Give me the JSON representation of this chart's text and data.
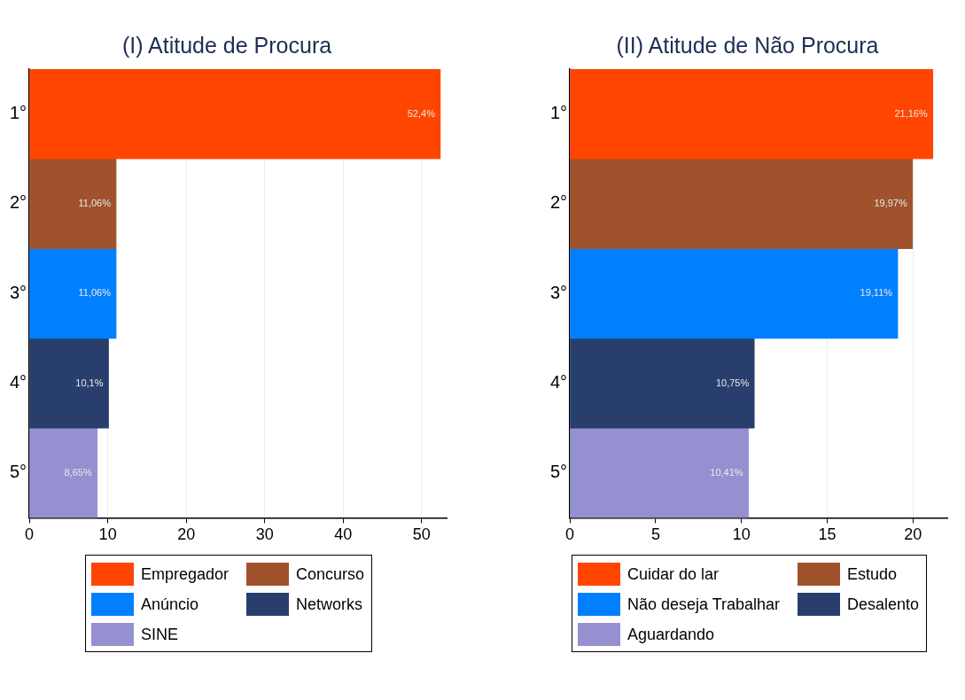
{
  "chart_data": [
    {
      "type": "bar",
      "orientation": "horizontal",
      "title": "(I) Atitude de Procura",
      "categories": [
        "1°",
        "2°",
        "3°",
        "4°",
        "5°"
      ],
      "xlim": [
        0,
        53.2
      ],
      "xticks": [
        0,
        10,
        20,
        30,
        40,
        50
      ],
      "grid": "x",
      "legend": "bottom",
      "series": [
        {
          "name": "Empregador",
          "color": "#ff4500",
          "values": [
            52.4,
            null,
            null,
            null,
            null
          ],
          "value_labels": [
            "52,4%",
            null,
            null,
            null,
            null
          ]
        },
        {
          "name": "Concurso",
          "color": "#a0522d",
          "values": [
            null,
            11.06,
            null,
            null,
            null
          ],
          "value_labels": [
            null,
            "11,06%",
            null,
            null,
            null
          ]
        },
        {
          "name": "Anúncio",
          "color": "#0080ff",
          "values": [
            null,
            null,
            11.06,
            null,
            null
          ],
          "value_labels": [
            null,
            null,
            "11,06%",
            null,
            null
          ]
        },
        {
          "name": "Networks",
          "color": "#283f6e",
          "values": [
            null,
            null,
            null,
            10.1,
            null
          ],
          "value_labels": [
            null,
            null,
            null,
            "10,1%",
            null
          ]
        },
        {
          "name": "SINE",
          "color": "#9590d0",
          "values": [
            null,
            null,
            null,
            null,
            8.65
          ],
          "value_labels": [
            null,
            null,
            null,
            null,
            "8,65%"
          ]
        }
      ]
    },
    {
      "type": "bar",
      "orientation": "horizontal",
      "title": "(II) Atitude de Não Procura",
      "categories": [
        "1°",
        "2°",
        "3°",
        "4°",
        "5°"
      ],
      "xlim": [
        0,
        22
      ],
      "xticks": [
        0,
        5,
        10,
        15,
        20
      ],
      "grid": "x",
      "legend": "bottom",
      "series": [
        {
          "name": "Cuidar do lar",
          "color": "#ff4500",
          "values": [
            21.16,
            null,
            null,
            null,
            null
          ],
          "value_labels": [
            "21,16%",
            null,
            null,
            null,
            null
          ]
        },
        {
          "name": "Estudo",
          "color": "#a0522d",
          "values": [
            null,
            19.97,
            null,
            null,
            null
          ],
          "value_labels": [
            null,
            "19,97%",
            null,
            null,
            null
          ]
        },
        {
          "name": "Não deseja Trabalhar",
          "color": "#0080ff",
          "values": [
            null,
            null,
            19.11,
            null,
            null
          ],
          "value_labels": [
            null,
            null,
            "19,11%",
            null,
            null
          ]
        },
        {
          "name": "Desalento",
          "color": "#283f6e",
          "values": [
            null,
            null,
            null,
            10.75,
            null
          ],
          "value_labels": [
            null,
            null,
            null,
            "10,75%",
            null
          ]
        },
        {
          "name": "Aguardando",
          "color": "#9590d0",
          "values": [
            null,
            null,
            null,
            null,
            10.41
          ],
          "value_labels": [
            null,
            null,
            null,
            null,
            "10,41%"
          ]
        }
      ]
    }
  ]
}
